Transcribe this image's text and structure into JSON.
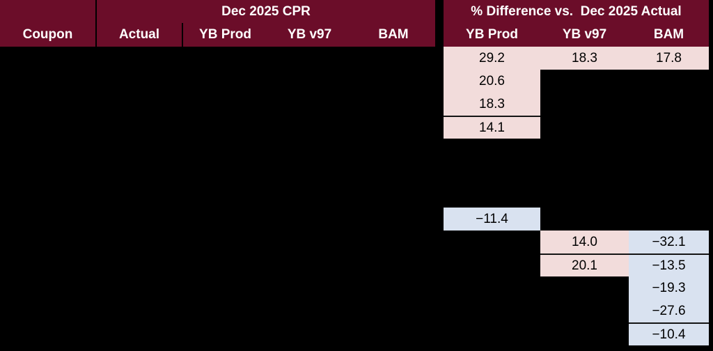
{
  "header": {
    "coupon_label": "Coupon",
    "left_group_label": "Dec 2025 CPR",
    "right_group_label": "% Difference vs.  Dec 2025 Actual",
    "left_cols": [
      "Actual",
      "YB Prod",
      "YB v97",
      "BAM"
    ],
    "right_cols": [
      "YB Prod",
      "YB v97",
      "BAM"
    ]
  },
  "colors": {
    "header_bg": "#6B0D29",
    "header_text": "#FFFFFF",
    "positive_bg": "#F2DCDB",
    "negative_bg": "#D9E2F0",
    "separator_line": "#141414",
    "page_bg": "#000000",
    "cell_text": "#000000"
  },
  "table": {
    "num_rows": 13,
    "cells": [
      {
        "row": 1,
        "col": "yb_prod",
        "value": "29.2",
        "tone": "positive",
        "border_top": false
      },
      {
        "row": 1,
        "col": "yb_v97",
        "value": "18.3",
        "tone": "positive",
        "border_top": false
      },
      {
        "row": 1,
        "col": "bam",
        "value": "17.8",
        "tone": "positive",
        "border_top": false
      },
      {
        "row": 2,
        "col": "yb_prod",
        "value": "20.6",
        "tone": "positive",
        "border_top": false
      },
      {
        "row": 3,
        "col": "yb_prod",
        "value": "18.3",
        "tone": "positive",
        "border_top": false
      },
      {
        "row": 4,
        "col": "yb_prod",
        "value": "14.1",
        "tone": "positive",
        "border_top": true
      },
      {
        "row": 8,
        "col": "yb_prod",
        "value": "−11.4",
        "tone": "negative",
        "border_top": false
      },
      {
        "row": 9,
        "col": "yb_v97",
        "value": "14.0",
        "tone": "positive",
        "border_top": false
      },
      {
        "row": 9,
        "col": "bam",
        "value": "−32.1",
        "tone": "negative",
        "border_top": false
      },
      {
        "row": 10,
        "col": "yb_v97",
        "value": "20.1",
        "tone": "positive",
        "border_top": true
      },
      {
        "row": 10,
        "col": "bam",
        "value": "−13.5",
        "tone": "negative",
        "border_top": true
      },
      {
        "row": 11,
        "col": "bam",
        "value": "−19.3",
        "tone": "negative",
        "border_top": false
      },
      {
        "row": 12,
        "col": "bam",
        "value": "−27.6",
        "tone": "negative",
        "border_top": false
      },
      {
        "row": 13,
        "col": "bam",
        "value": "−10.4",
        "tone": "negative",
        "border_top": true
      }
    ]
  },
  "chart_data": {
    "type": "table",
    "title": "Dec 2025 CPR",
    "subtitle": "% Difference vs.  Dec 2025 Actual",
    "columns": [
      "Coupon",
      "Actual",
      "YB Prod",
      "YB v97",
      "BAM",
      "YB Prod (% diff)",
      "YB v97 (% diff)",
      "BAM (% diff)"
    ],
    "rows": [
      {
        "row": 1,
        "yb_prod_diff": 29.2,
        "yb_v97_diff": 18.3,
        "bam_diff": 17.8
      },
      {
        "row": 2,
        "yb_prod_diff": 20.6,
        "yb_v97_diff": null,
        "bam_diff": null
      },
      {
        "row": 3,
        "yb_prod_diff": 18.3,
        "yb_v97_diff": null,
        "bam_diff": null
      },
      {
        "row": 4,
        "yb_prod_diff": 14.1,
        "yb_v97_diff": null,
        "bam_diff": null
      },
      {
        "row": 5,
        "yb_prod_diff": null,
        "yb_v97_diff": null,
        "bam_diff": null
      },
      {
        "row": 6,
        "yb_prod_diff": null,
        "yb_v97_diff": null,
        "bam_diff": null
      },
      {
        "row": 7,
        "yb_prod_diff": null,
        "yb_v97_diff": null,
        "bam_diff": null
      },
      {
        "row": 8,
        "yb_prod_diff": -11.4,
        "yb_v97_diff": null,
        "bam_diff": null
      },
      {
        "row": 9,
        "yb_prod_diff": null,
        "yb_v97_diff": 14.0,
        "bam_diff": -32.1
      },
      {
        "row": 10,
        "yb_prod_diff": null,
        "yb_v97_diff": 20.1,
        "bam_diff": -13.5
      },
      {
        "row": 11,
        "yb_prod_diff": null,
        "yb_v97_diff": null,
        "bam_diff": -19.3
      },
      {
        "row": 12,
        "yb_prod_diff": null,
        "yb_v97_diff": null,
        "bam_diff": -27.6
      },
      {
        "row": 13,
        "yb_prod_diff": null,
        "yb_v97_diff": null,
        "bam_diff": -10.4
      }
    ],
    "legend": {
      "positive_fill": "#F2DCDB",
      "negative_fill": "#D9E2F0"
    },
    "layout_note": "Coupon, Actual and all CPR columns are blacked out; only % difference cells with conditional formatting are visible"
  }
}
